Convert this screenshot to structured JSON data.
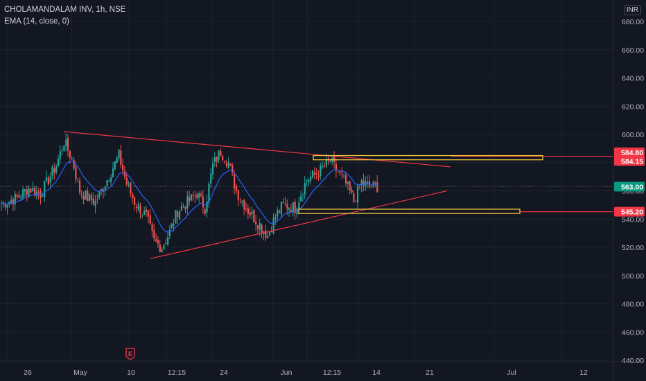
{
  "legend": {
    "symbol": "CHOLAMANDALAM INV, 1h, NSE",
    "indicator": "EMA (14, close, 0)"
  },
  "currency": "INR",
  "colors": {
    "background": "#131722",
    "grid": "#1e222d",
    "axis_text": "#b2b5be",
    "up": "#26a69a",
    "down": "#ef5350",
    "ema": "#2962ff",
    "trendline": "#f23645",
    "zone_border": "#f0c43c",
    "badge_red": "#f23645",
    "badge_green": "#089981"
  },
  "icons": {
    "earnings": "earnings-e-icon"
  },
  "chart_data": {
    "type": "candlestick",
    "y_axis": {
      "range": [
        436,
        686
      ],
      "ticks": [
        440,
        460,
        480,
        500,
        520,
        540,
        560,
        580,
        600,
        620,
        640,
        660,
        680
      ],
      "tick_labels": [
        "440.00",
        "460.00",
        "480.00",
        "500.00",
        "520.00",
        "540.00",
        "560.00",
        "580.00",
        "600.00",
        "620.00",
        "640.00",
        "660.00",
        "680.00"
      ]
    },
    "x_axis": {
      "labels": [
        "26",
        "May",
        "10",
        "12:15",
        "24",
        "Jun",
        "12:15",
        "14",
        "21",
        "Jul",
        "12"
      ],
      "label_index": [
        4,
        38,
        68,
        88,
        112,
        145,
        163,
        190,
        220,
        262,
        298
      ],
      "index_range": [
        0,
        325
      ]
    },
    "price_markers": [
      {
        "value": 584.8,
        "label": "584.80",
        "style": "red"
      },
      {
        "value": 584.15,
        "label": "584.15",
        "style": "red"
      },
      {
        "value": 563.0,
        "label": "563.00",
        "style": "green"
      },
      {
        "value": 545.2,
        "label": "545.20",
        "style": "red"
      }
    ],
    "horizontal_lines": [
      {
        "value": 584.5,
        "style": "red",
        "start_index": 168
      },
      {
        "value": 545.2,
        "style": "red",
        "start_index": 265
      },
      {
        "value": 563.0,
        "style": "dotted",
        "start_index": 0
      }
    ],
    "trendlines": [
      {
        "from": [
          32,
          602
        ],
        "to": [
          232,
          577
        ]
      },
      {
        "from": [
          76,
          512
        ],
        "to": [
          228,
          560
        ]
      }
    ],
    "zones": [
      {
        "from_index": 160,
        "to_index": 277,
        "low": 582,
        "high": 585
      },
      {
        "from_index": 152,
        "to_index": 265,
        "low": 544,
        "high": 547
      }
    ],
    "earnings_marker_index": 66,
    "anchors": [
      [
        0,
        551
      ],
      [
        8,
        555
      ],
      [
        14,
        562
      ],
      [
        20,
        558
      ],
      [
        28,
        578
      ],
      [
        32,
        595
      ],
      [
        36,
        583
      ],
      [
        40,
        560
      ],
      [
        44,
        555
      ],
      [
        48,
        552
      ],
      [
        54,
        568
      ],
      [
        60,
        585
      ],
      [
        64,
        565
      ],
      [
        68,
        552
      ],
      [
        74,
        542
      ],
      [
        78,
        524
      ],
      [
        82,
        520
      ],
      [
        86,
        531
      ],
      [
        90,
        546
      ],
      [
        96,
        553
      ],
      [
        100,
        558
      ],
      [
        104,
        548
      ],
      [
        108,
        578
      ],
      [
        112,
        588
      ],
      [
        116,
        580
      ],
      [
        120,
        560
      ],
      [
        126,
        546
      ],
      [
        132,
        536
      ],
      [
        136,
        528
      ],
      [
        140,
        542
      ],
      [
        144,
        550
      ],
      [
        150,
        548
      ],
      [
        156,
        568
      ],
      [
        162,
        573
      ],
      [
        168,
        581
      ],
      [
        172,
        573
      ],
      [
        176,
        565
      ],
      [
        180,
        553
      ],
      [
        184,
        566
      ],
      [
        188,
        563
      ],
      [
        192,
        563
      ]
    ],
    "candle_count": 193,
    "ema_period": 14
  }
}
